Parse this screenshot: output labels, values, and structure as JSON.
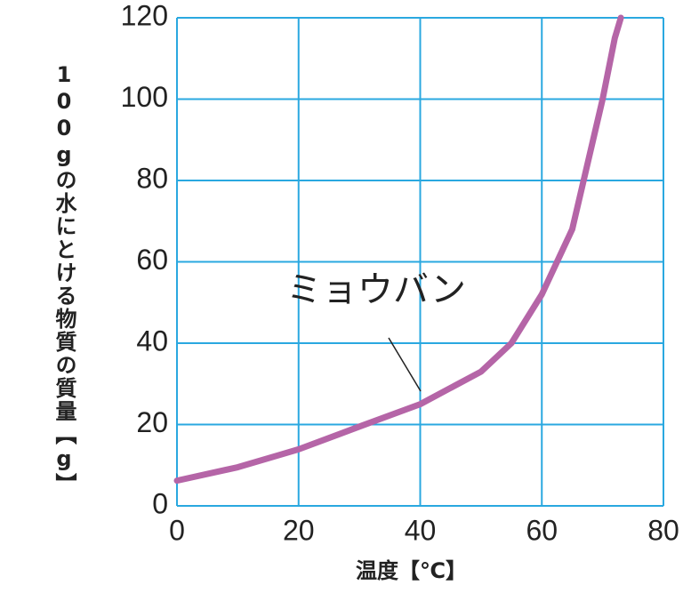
{
  "chart_data": {
    "type": "line",
    "x_label": "温度【℃】",
    "y_label": "100gの水にとける物質の質量【g】",
    "x": [
      0,
      10,
      20,
      30,
      40,
      50,
      55,
      60,
      65,
      70,
      72,
      73
    ],
    "series": [
      {
        "name": "ミョウバン",
        "color": "#b565a7",
        "values": [
          6.2,
          9.5,
          13.9,
          19.5,
          25,
          33,
          40,
          52,
          68,
          100,
          115,
          120
        ]
      }
    ],
    "xlim": [
      0,
      80
    ],
    "xticks": [
      0,
      20,
      40,
      60,
      80
    ],
    "ylim": [
      0,
      120
    ],
    "yticks": [
      0,
      20,
      40,
      60,
      80,
      100,
      120
    ],
    "grid": true,
    "grid_color": "#2aa8e0"
  }
}
